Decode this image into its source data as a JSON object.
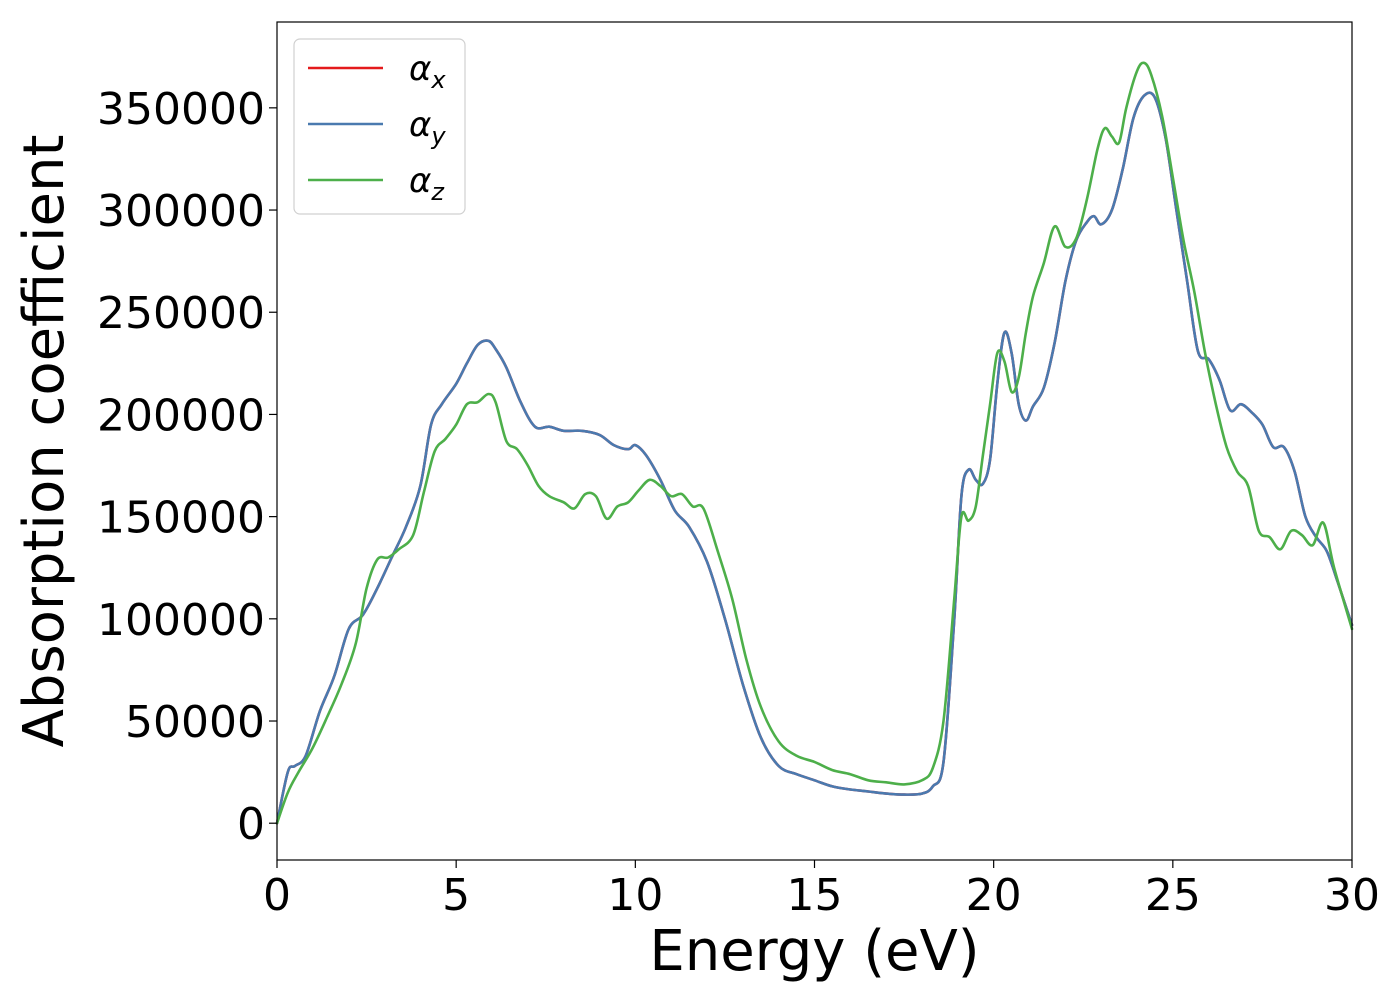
{
  "chart_data": {
    "type": "line",
    "title": "",
    "xlabel": "Energy (eV)",
    "ylabel": "Absorption coefficient",
    "xlim": [
      0,
      30
    ],
    "ylim": [
      -18000,
      392000
    ],
    "xticks": [
      0,
      5,
      10,
      15,
      20,
      25,
      30
    ],
    "yticks": [
      0,
      50000,
      100000,
      150000,
      200000,
      250000,
      300000,
      350000
    ],
    "grid": false,
    "legend_position": "upper-left",
    "series": [
      {
        "name": "α_x",
        "legend": {
          "base": "α",
          "sub": "x"
        },
        "color": "#e41a1c",
        "x": [
          0,
          0.3,
          0.5,
          0.8,
          1.2,
          1.6,
          2.0,
          2.4,
          2.8,
          3.2,
          3.6,
          4.0,
          4.3,
          4.6,
          5.0,
          5.3,
          5.6,
          5.9,
          6.1,
          6.4,
          6.8,
          7.2,
          7.6,
          8.0,
          8.5,
          9.0,
          9.4,
          9.8,
          10.0,
          10.3,
          10.7,
          11.1,
          11.5,
          12.0,
          12.5,
          13.0,
          13.5,
          14.0,
          14.5,
          15.0,
          15.5,
          16.0,
          16.5,
          17.0,
          17.5,
          18.0,
          18.3,
          18.6,
          18.9,
          19.1,
          19.3,
          19.5,
          19.7,
          19.9,
          20.1,
          20.3,
          20.5,
          20.7,
          20.9,
          21.1,
          21.4,
          21.7,
          22.0,
          22.3,
          22.6,
          22.8,
          23.0,
          23.3,
          23.6,
          23.9,
          24.2,
          24.5,
          24.8,
          25.1,
          25.4,
          25.7,
          26.0,
          26.3,
          26.6,
          26.9,
          27.2,
          27.5,
          27.8,
          28.1,
          28.4,
          28.7,
          29.0,
          29.3,
          29.6,
          30.0
        ],
        "values": [
          0,
          25000,
          28000,
          33000,
          55000,
          72000,
          95000,
          102000,
          115000,
          130000,
          145000,
          165000,
          195000,
          205000,
          215000,
          225000,
          234000,
          236000,
          232000,
          223000,
          206000,
          194000,
          194000,
          192000,
          192000,
          190000,
          185000,
          183000,
          185000,
          180000,
          168000,
          153000,
          145000,
          128000,
          100000,
          68000,
          42000,
          28000,
          24000,
          21000,
          18000,
          16500,
          15500,
          14500,
          14000,
          14500,
          18000,
          30000,
          100000,
          160000,
          173000,
          168000,
          166000,
          178000,
          215000,
          240000,
          230000,
          205000,
          197000,
          204000,
          213000,
          235000,
          265000,
          285000,
          294000,
          297000,
          293000,
          300000,
          320000,
          345000,
          356000,
          355000,
          335000,
          300000,
          265000,
          231000,
          227000,
          217000,
          202000,
          205000,
          201000,
          195000,
          184000,
          184000,
          172000,
          150000,
          140000,
          133000,
          118000,
          97000
        ]
      },
      {
        "name": "α_y",
        "legend": {
          "base": "α",
          "sub": "y"
        },
        "color": "#4a7aaf",
        "x": [
          0,
          0.3,
          0.5,
          0.8,
          1.2,
          1.6,
          2.0,
          2.4,
          2.8,
          3.2,
          3.6,
          4.0,
          4.3,
          4.6,
          5.0,
          5.3,
          5.6,
          5.9,
          6.1,
          6.4,
          6.8,
          7.2,
          7.6,
          8.0,
          8.5,
          9.0,
          9.4,
          9.8,
          10.0,
          10.3,
          10.7,
          11.1,
          11.5,
          12.0,
          12.5,
          13.0,
          13.5,
          14.0,
          14.5,
          15.0,
          15.5,
          16.0,
          16.5,
          17.0,
          17.5,
          18.0,
          18.3,
          18.6,
          18.9,
          19.1,
          19.3,
          19.5,
          19.7,
          19.9,
          20.1,
          20.3,
          20.5,
          20.7,
          20.9,
          21.1,
          21.4,
          21.7,
          22.0,
          22.3,
          22.6,
          22.8,
          23.0,
          23.3,
          23.6,
          23.9,
          24.2,
          24.5,
          24.8,
          25.1,
          25.4,
          25.7,
          26.0,
          26.3,
          26.6,
          26.9,
          27.2,
          27.5,
          27.8,
          28.1,
          28.4,
          28.7,
          29.0,
          29.3,
          29.6,
          30.0
        ],
        "values": [
          0,
          25000,
          28000,
          33000,
          55000,
          72000,
          95000,
          102000,
          115000,
          130000,
          145000,
          165000,
          195000,
          205000,
          215000,
          225000,
          234000,
          236000,
          232000,
          223000,
          206000,
          194000,
          194000,
          192000,
          192000,
          190000,
          185000,
          183000,
          185000,
          180000,
          168000,
          153000,
          145000,
          128000,
          100000,
          68000,
          42000,
          28000,
          24000,
          21000,
          18000,
          16500,
          15500,
          14500,
          14000,
          14500,
          18000,
          30000,
          100000,
          160000,
          173000,
          168000,
          166000,
          178000,
          215000,
          240000,
          230000,
          205000,
          197000,
          204000,
          213000,
          235000,
          265000,
          285000,
          294000,
          297000,
          293000,
          300000,
          320000,
          345000,
          356000,
          355000,
          335000,
          300000,
          265000,
          231000,
          227000,
          217000,
          202000,
          205000,
          201000,
          195000,
          184000,
          184000,
          172000,
          150000,
          140000,
          133000,
          118000,
          97000
        ]
      },
      {
        "name": "α_z",
        "legend": {
          "base": "α",
          "sub": "z"
        },
        "color": "#4daf4a",
        "x": [
          0,
          0.3,
          0.6,
          1.0,
          1.4,
          1.8,
          2.2,
          2.5,
          2.8,
          3.1,
          3.4,
          3.8,
          4.1,
          4.4,
          4.7,
          5.0,
          5.3,
          5.6,
          5.9,
          6.1,
          6.4,
          6.7,
          7.0,
          7.3,
          7.6,
          8.0,
          8.3,
          8.6,
          8.9,
          9.2,
          9.5,
          9.8,
          10.1,
          10.4,
          10.7,
          11.0,
          11.3,
          11.6,
          11.9,
          12.3,
          12.7,
          13.1,
          13.5,
          14.0,
          14.5,
          15.0,
          15.5,
          16.0,
          16.5,
          17.0,
          17.5,
          18.0,
          18.3,
          18.6,
          18.9,
          19.1,
          19.3,
          19.5,
          19.7,
          19.9,
          20.1,
          20.3,
          20.5,
          20.7,
          20.9,
          21.1,
          21.4,
          21.7,
          22.0,
          22.3,
          22.6,
          22.9,
          23.1,
          23.3,
          23.5,
          23.7,
          24.0,
          24.2,
          24.4,
          24.7,
          25.0,
          25.3,
          25.6,
          25.9,
          26.2,
          26.5,
          26.8,
          27.1,
          27.4,
          27.7,
          28.0,
          28.3,
          28.6,
          28.9,
          29.2,
          29.5,
          30.0
        ],
        "values": [
          0,
          15000,
          25000,
          37000,
          52000,
          68000,
          88000,
          115000,
          129000,
          130000,
          134000,
          141000,
          162000,
          182000,
          188000,
          195000,
          205000,
          206000,
          210000,
          206000,
          187000,
          183000,
          175000,
          165000,
          160000,
          157000,
          154000,
          161000,
          160000,
          149000,
          155000,
          157000,
          163000,
          168000,
          165000,
          160000,
          161000,
          155000,
          154000,
          133000,
          110000,
          80000,
          57000,
          40000,
          33000,
          30000,
          26000,
          24000,
          21000,
          20000,
          19000,
          21000,
          27000,
          50000,
          110000,
          150000,
          148000,
          155000,
          180000,
          205000,
          230000,
          226000,
          211000,
          218000,
          240000,
          258000,
          274000,
          292000,
          282000,
          286000,
          305000,
          330000,
          340000,
          336000,
          333000,
          350000,
          368000,
          372000,
          366000,
          346000,
          316000,
          285000,
          260000,
          230000,
          205000,
          184000,
          172000,
          165000,
          143000,
          140000,
          134000,
          143000,
          141000,
          136000,
          147000,
          125000,
          95000
        ]
      }
    ]
  }
}
